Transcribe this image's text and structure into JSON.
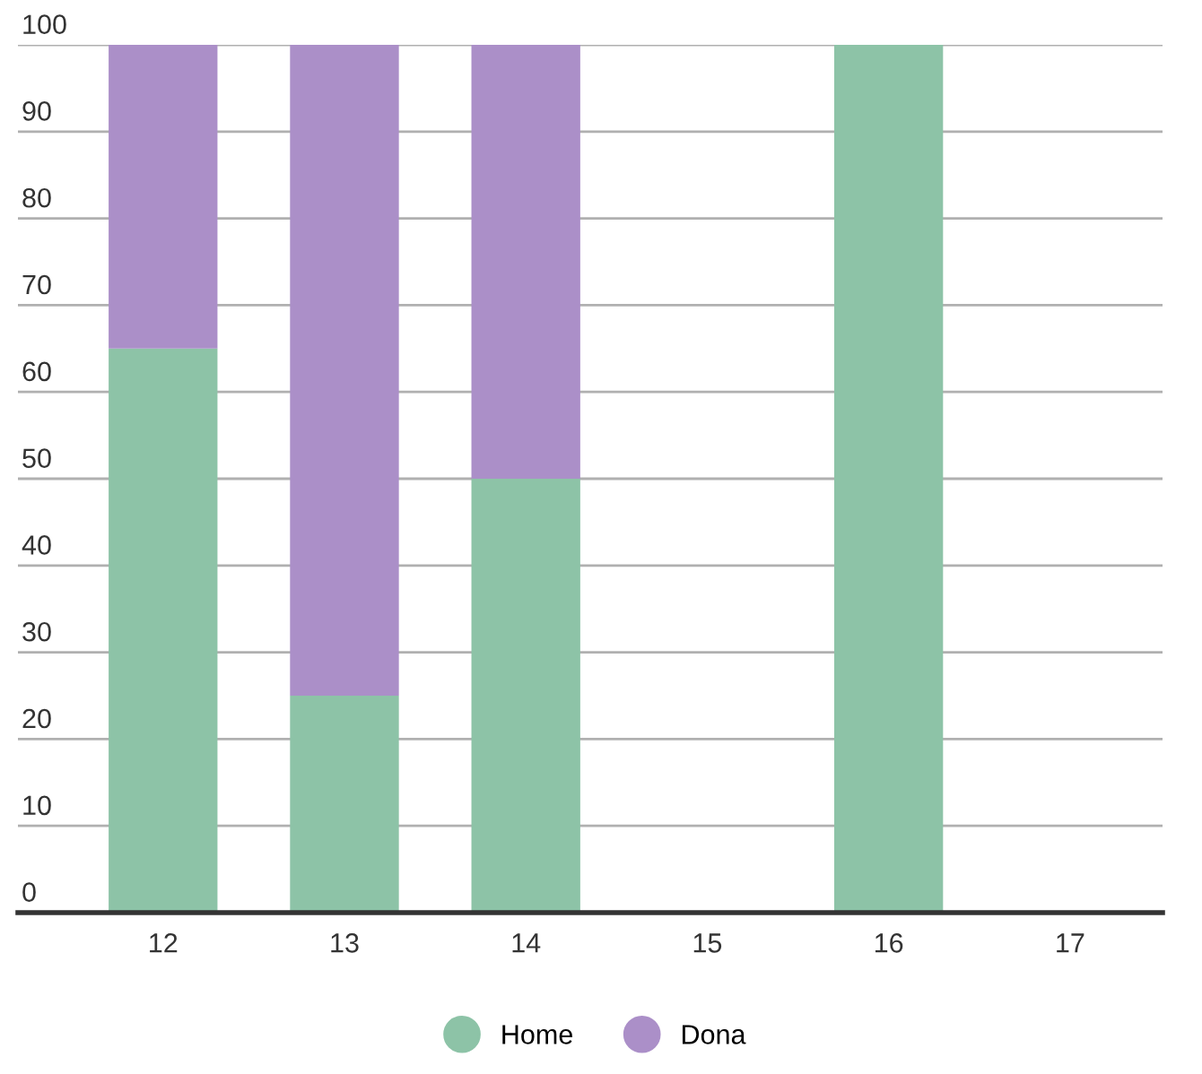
{
  "chart_data": {
    "type": "bar",
    "stacked": true,
    "categories": [
      "12",
      "13",
      "14",
      "15",
      "16",
      "17"
    ],
    "series": [
      {
        "name": "Home",
        "color": "#8dc3a7",
        "values": [
          65,
          25,
          50,
          0,
          100,
          0
        ]
      },
      {
        "name": "Dona",
        "color": "#ab8fc8",
        "values": [
          35,
          75,
          50,
          0,
          0,
          0
        ]
      }
    ],
    "ylim": [
      0,
      100
    ],
    "yticks": [
      0,
      10,
      20,
      30,
      40,
      50,
      60,
      70,
      80,
      90,
      100
    ],
    "grid": "y",
    "legend": "bottom"
  }
}
